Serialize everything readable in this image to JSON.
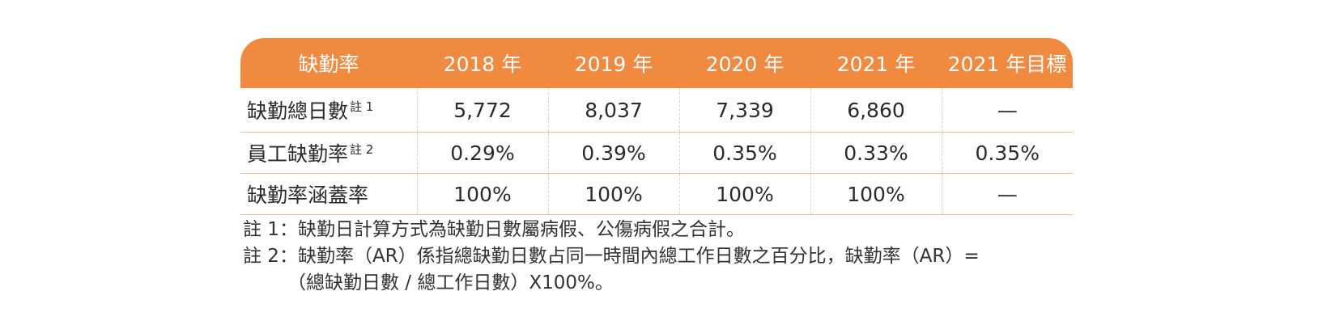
{
  "table": {
    "headers": [
      "缺勤率",
      "2018 年",
      "2019 年",
      "2020 年",
      "2021 年",
      "2021 年目標"
    ],
    "rows": [
      {
        "label": "缺勤總日數",
        "note_mark": "註 1",
        "values": [
          "5,772",
          "8,037",
          "7,339",
          "6,860",
          "—"
        ]
      },
      {
        "label": "員工缺勤率",
        "note_mark": "註 2",
        "values": [
          "0.29%",
          "0.39%",
          "0.35%",
          "0.33%",
          "0.35%"
        ]
      },
      {
        "label": "缺勤率涵蓋率",
        "note_mark": "",
        "values": [
          "100%",
          "100%",
          "100%",
          "100%",
          "—"
        ]
      }
    ]
  },
  "notes": {
    "note1": "註 1：缺勤日計算方式為缺勤日數屬病假、公傷病假之合計。",
    "note2_line1": "註 2：缺勤率（AR）係指總缺勤日數占同一時間內總工作日數之百分比，缺勤率（AR）=",
    "note2_line2": "（總缺勤日數 / 總工作日數）X100%。"
  },
  "colors": {
    "header_bg": "#ef8a40",
    "header_text": "#ffffff",
    "row_border": "#f2b98c"
  }
}
